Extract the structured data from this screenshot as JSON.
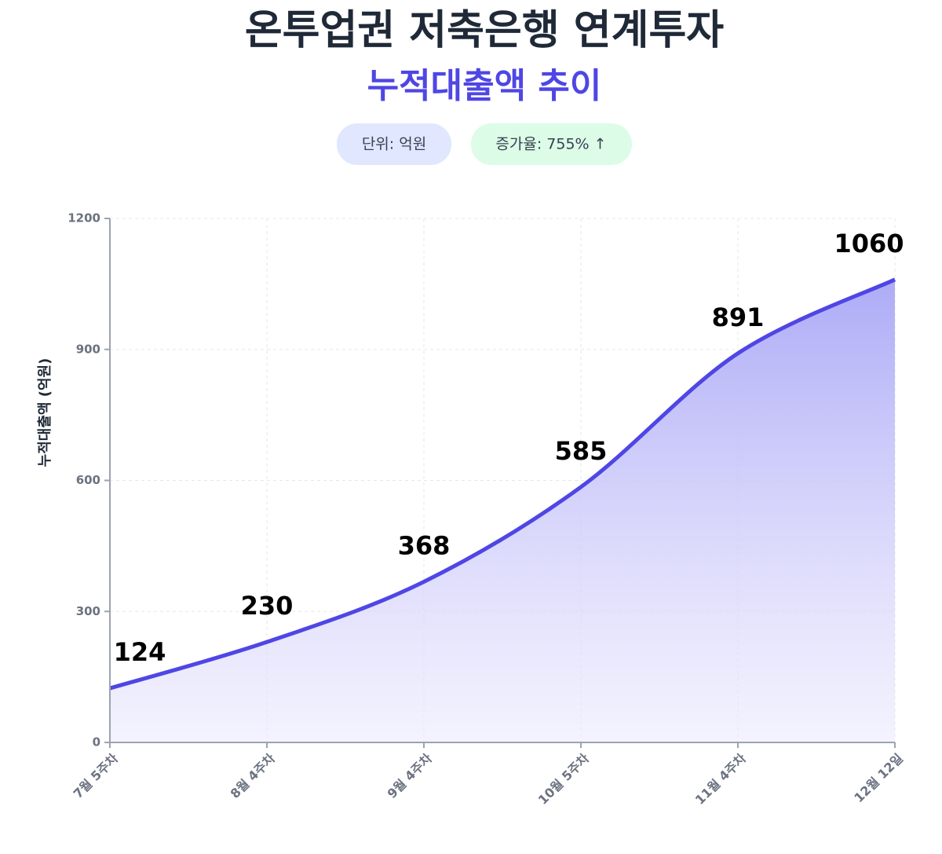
{
  "chart_data": {
    "type": "area",
    "title": "온투업권 저축은행 연계투자",
    "subtitle": "누적대출액 추이",
    "unit_badge": "단위: 억원",
    "growth_badge": "증가율: 755% ↑",
    "y_label": "누적대출액 (억원)",
    "categories": [
      "7월 5주차",
      "8월 4주차",
      "9월 4주차",
      "10월 5주차",
      "11월 4주차",
      "12월 12일"
    ],
    "values": [
      124,
      230,
      368,
      585,
      891,
      1060
    ],
    "color": "#4f46e5",
    "ylim": [
      0,
      1200
    ],
    "yticks": [
      0,
      300,
      600,
      900,
      1200
    ],
    "grid": true
  }
}
